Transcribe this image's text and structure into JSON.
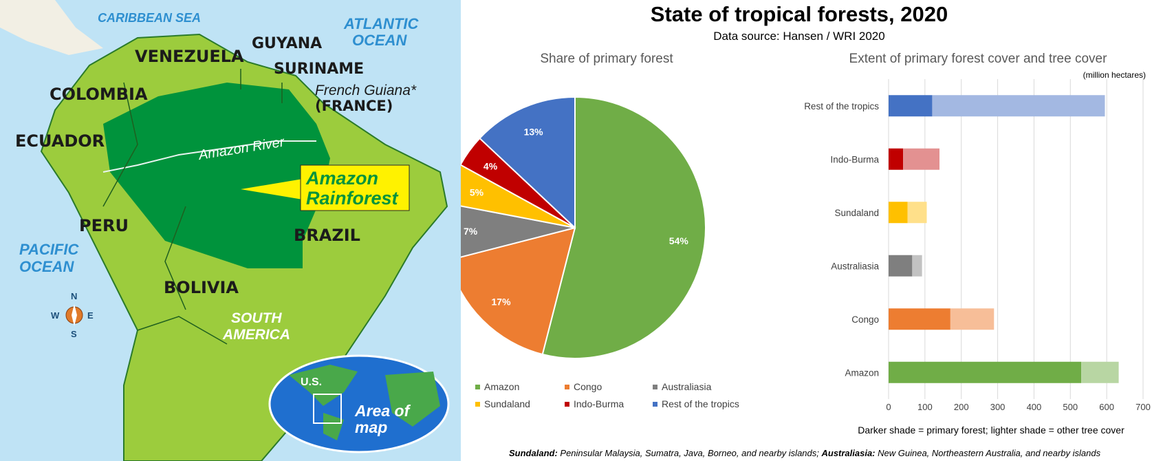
{
  "map": {
    "labels": {
      "caribbean": "CARIBBEAN SEA",
      "atlantic_1": "ATLANTIC",
      "atlantic_2": "OCEAN",
      "guyana": "GUYANA",
      "venezuela": "VENEZUELA",
      "suriname": "SURINAME",
      "french_guiana": "French Guiana*",
      "france": "(FRANCE)",
      "colombia": "COLOMBIA",
      "ecuador": "ECUADOR",
      "amazon_river": "Amazon River",
      "callout_1": "Amazon",
      "callout_2": "Rainforest",
      "peru": "PERU",
      "brazil": "BRAZIL",
      "pacific_1": "PACIFIC",
      "pacific_2": "OCEAN",
      "bolivia": "BOLIVIA",
      "south_1": "SOUTH",
      "south_2": "AMERICA",
      "us": "U.S.",
      "area_1": "Area of",
      "area_2": "map",
      "compass_n": "N",
      "compass_s": "S",
      "compass_e": "E",
      "compass_w": "W"
    }
  },
  "chart_data": [
    {
      "type": "pie",
      "title": "State of tropical forests, 2020",
      "subtitle": "Data source: Hansen / WRI 2020",
      "panel_title": "Share of primary forest",
      "slices": [
        {
          "name": "Amazon",
          "value": 54,
          "label": "54%",
          "color": "#70ad47"
        },
        {
          "name": "Congo",
          "value": 17,
          "label": "17%",
          "color": "#ed7d31"
        },
        {
          "name": "Australiasia",
          "value": 7,
          "label": "7%",
          "color": "#7f7f7f"
        },
        {
          "name": "Sundaland",
          "value": 5,
          "label": "5%",
          "color": "#ffc000"
        },
        {
          "name": "Indo-Burma",
          "value": 4,
          "label": "4%",
          "color": "#c00000"
        },
        {
          "name": "Rest of the tropics",
          "value": 13,
          "label": "13%",
          "color": "#4472c4"
        }
      ],
      "legend": [
        "Amazon",
        "Congo",
        "Australiasia",
        "Sundaland",
        "Indo-Burma",
        "Rest of the tropics"
      ]
    },
    {
      "type": "bar",
      "orientation": "horizontal",
      "stacked": true,
      "panel_title": "Extent of primary forest cover and tree cover",
      "unit": "(million hectares)",
      "categories": [
        "Rest of the tropics",
        "Indo-Burma",
        "Sundaland",
        "Australiasia",
        "Congo",
        "Amazon"
      ],
      "series": [
        {
          "values": [
            120,
            40,
            52,
            65,
            170,
            530
          ]
        },
        {
          "values": [
            475,
            100,
            53,
            27,
            120,
            103
          ]
        }
      ],
      "colors_dark": [
        "#4472c4",
        "#c00000",
        "#ffc000",
        "#7f7f7f",
        "#ed7d31",
        "#70ad47"
      ],
      "colors_light": [
        "#a3b8e2",
        "#e39191",
        "#ffe08a",
        "#c2c2c2",
        "#f7be98",
        "#b8d6a3"
      ],
      "xlim": [
        0,
        700
      ],
      "xticks": [
        0,
        100,
        200,
        300,
        400,
        500,
        600,
        700
      ],
      "grid": true,
      "note": "Darker shade = primary forest; lighter shade = other tree cover"
    }
  ],
  "footnote": {
    "sundaland_term": "Sundaland:",
    "sundaland_text": " Peninsular Malaysia, Sumatra, Java, Borneo, and nearby islands; ",
    "australiasia_term": "Australiasia:",
    "australiasia_text": " New Guinea, Northeastern Australia, and nearby islands"
  }
}
